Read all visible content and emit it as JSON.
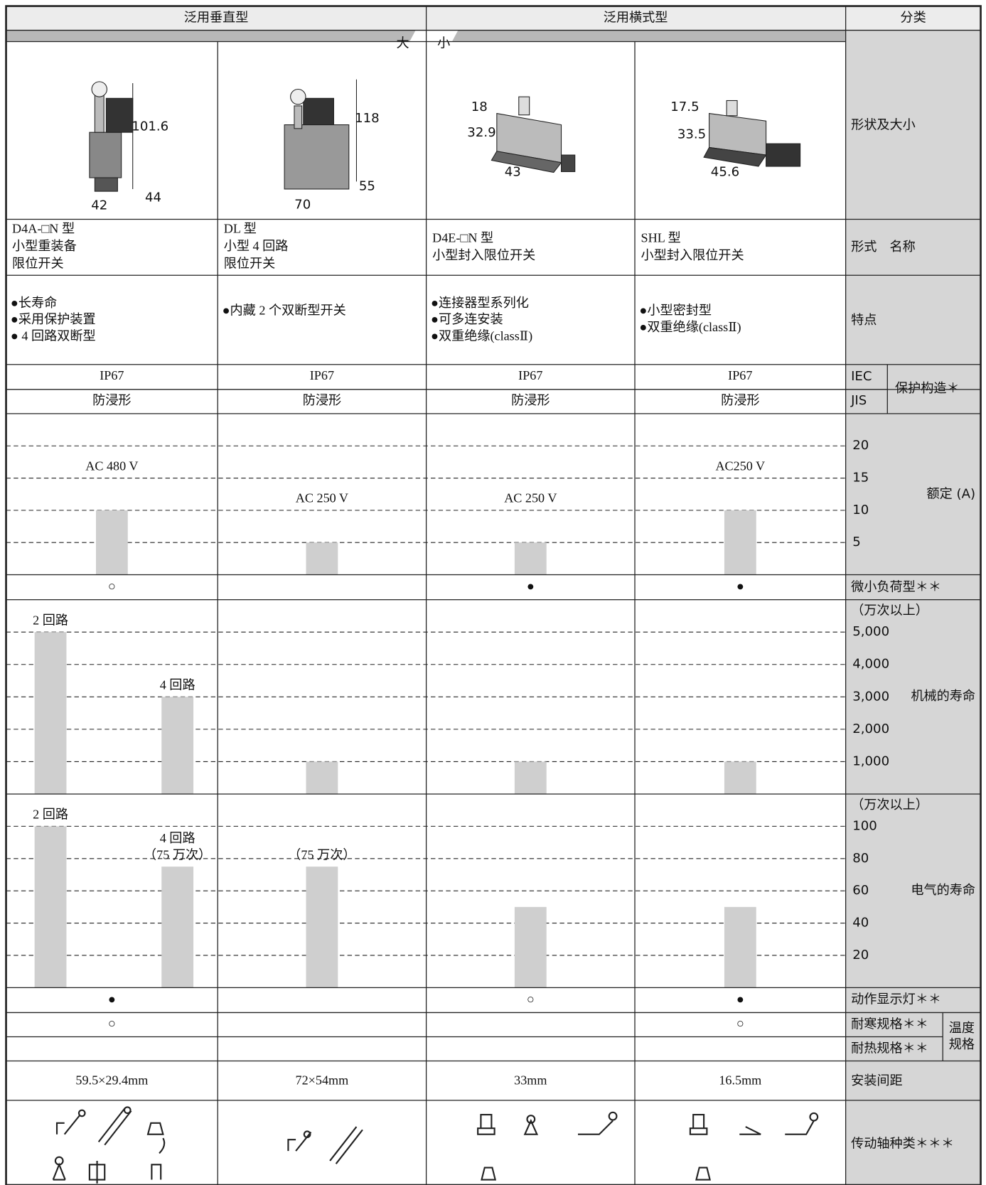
{
  "header": {
    "vertical_type": "泛用垂直型",
    "horizontal_type": "泛用横式型",
    "category": "分类",
    "large": "大",
    "small": "小"
  },
  "row_labels": {
    "shape": "形状及大小",
    "name": "形式　名称",
    "features": "特点",
    "iec": "IEC",
    "jis": "JIS",
    "protection": "保护构造＊",
    "rated": "额定 (A)",
    "micro_load": "微小负荷型＊＊",
    "mech_unit": "（万次以上）",
    "mech": "机械的寿命",
    "elec_unit": "（万次以上）",
    "elec": "电气的寿命",
    "lamp": "动作显示灯＊＊",
    "cold": "耐寒规格＊＊",
    "heat": "耐热规格＊＊",
    "temperature": [
      "温度",
      "规格"
    ],
    "pitch": "安装间距",
    "actuator": "传动轴种类＊＊＊"
  },
  "rated_chart": {
    "ylim": [
      0,
      25
    ],
    "yticks": [
      5,
      10,
      15,
      20
    ]
  },
  "mech_chart": {
    "ylim": [
      0,
      6000
    ],
    "yticks": [
      {
        "value": 1000,
        "label": "1,000"
      },
      {
        "value": 2000,
        "label": "2,000"
      },
      {
        "value": 3000,
        "label": "3,000"
      },
      {
        "value": 4000,
        "label": "4,000"
      },
      {
        "value": 5000,
        "label": "5,000"
      }
    ]
  },
  "elec_chart": {
    "ylim": [
      0,
      120
    ],
    "yticks": [
      20,
      40,
      60,
      80,
      100
    ]
  },
  "products": [
    {
      "dims": [
        "101.6",
        "42",
        "44"
      ],
      "name": [
        "D4A-□N 型",
        "小型重装备",
        "限位开关"
      ],
      "features": [
        "●长寿命",
        "●采用保护装置",
        "● 4 回路双断型"
      ],
      "iec": "IP67",
      "jis": "防浸形",
      "voltage": "AC 480 V",
      "rated_current": 10,
      "micro_load": "○",
      "mech_life": [
        5000,
        3000
      ],
      "mech_labels": [
        "2 回路",
        "4 回路"
      ],
      "elec_life": [
        100,
        75
      ],
      "elec_labels": [
        [
          "2 回路"
        ],
        [
          "4 回路",
          "（75 万次）"
        ]
      ],
      "lamp": "●",
      "cold": "○",
      "heat": null,
      "pitch": "59.5×29.4mm"
    },
    {
      "dims": [
        "118",
        "70",
        "55"
      ],
      "name": [
        "DL 型",
        "小型 4 回路",
        "限位开关"
      ],
      "features": [
        "●内藏 2 个双断型开关"
      ],
      "iec": "IP67",
      "jis": "防浸形",
      "voltage": "AC 250 V",
      "rated_current": 5,
      "micro_load": null,
      "mech_life": [
        1000
      ],
      "mech_labels": [
        null
      ],
      "elec_life": [
        75
      ],
      "elec_labels": [
        [
          "（75 万次）"
        ]
      ],
      "lamp": null,
      "cold": null,
      "heat": null,
      "pitch": "72×54mm"
    },
    {
      "dims": [
        "18",
        "32.9",
        "43"
      ],
      "name": [
        "D4E-□N 型",
        "小型封入限位开关"
      ],
      "features": [
        "●连接器型系列化",
        "●可多连安装",
        "●双重绝缘(classⅡ)"
      ],
      "iec": "IP67",
      "jis": "防浸形",
      "voltage": "AC 250 V",
      "rated_current": 5,
      "micro_load": "●",
      "mech_life": [
        1000
      ],
      "mech_labels": [
        null
      ],
      "elec_life": [
        50
      ],
      "elec_labels": [
        null
      ],
      "lamp": "○",
      "cold": null,
      "heat": null,
      "pitch": "33mm"
    },
    {
      "dims": [
        "17.5",
        "33.5",
        "45.6"
      ],
      "name": [
        "SHL 型",
        "小型封入限位开关"
      ],
      "features": [
        "●小型密封型",
        "●双重绝缘(classⅡ)"
      ],
      "iec": "IP67",
      "jis": "防浸形",
      "voltage": "AC250 V",
      "rated_current": 10,
      "micro_load": "●",
      "mech_life": [
        1000
      ],
      "mech_labels": [
        null
      ],
      "elec_life": [
        50
      ],
      "elec_labels": [
        null
      ],
      "lamp": "●",
      "cold": "○",
      "heat": null,
      "pitch": "16.5mm"
    }
  ]
}
